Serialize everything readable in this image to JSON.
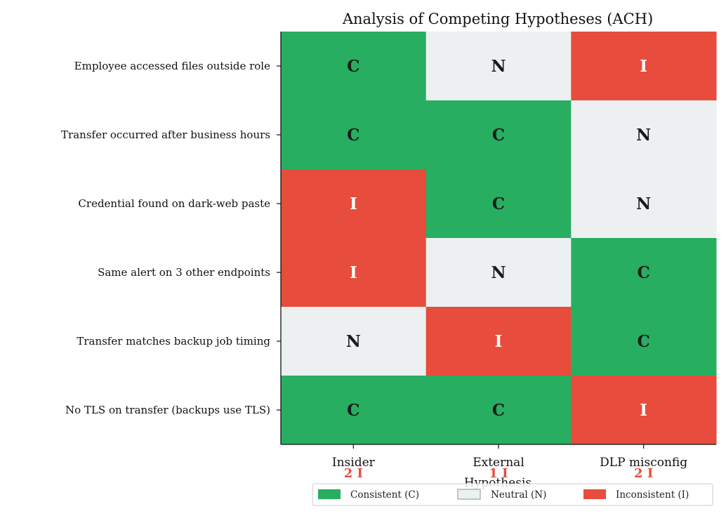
{
  "chart_data": {
    "type": "heatmap",
    "title": "Analysis of Competing Hypotheses (ACH)",
    "xlabel": "Hypothesis",
    "ylabel": "",
    "columns": [
      "Insider",
      "External",
      "DLP misconfig"
    ],
    "rows": [
      "Employee accessed files outside role",
      "Transfer occurred after business hours",
      "Credential found on dark-web paste",
      "Same alert on 3 other endpoints",
      "Transfer matches backup job timing",
      "No TLS on transfer (backups use TLS)"
    ],
    "matrix": [
      [
        "C",
        "N",
        "I"
      ],
      [
        "C",
        "C",
        "N"
      ],
      [
        "I",
        "C",
        "N"
      ],
      [
        "I",
        "N",
        "C"
      ],
      [
        "N",
        "I",
        "C"
      ],
      [
        "C",
        "C",
        "I"
      ]
    ],
    "inconsistency_counts": [
      "2 I",
      "1 I",
      "2 I"
    ],
    "legend": {
      "placement": "bottom-right",
      "entries": [
        {
          "key": "C",
          "label": "Consistent (C)",
          "color": "#27ae60"
        },
        {
          "key": "N",
          "label": "Neutral (N)",
          "color": "#ecf0f1",
          "edge": "#95a5a6"
        },
        {
          "key": "I",
          "label": "Inconsistent (I)",
          "color": "#e74c3c"
        }
      ]
    },
    "text_colors": {
      "C": "#1a1a1a",
      "N": "#1a1a1a",
      "I": "#ffffff"
    }
  }
}
